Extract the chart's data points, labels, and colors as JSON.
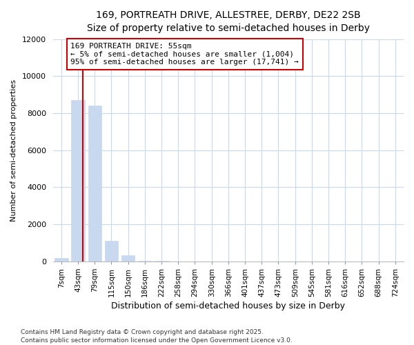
{
  "title1": "169, PORTREATH DRIVE, ALLESTREE, DERBY, DE22 2SB",
  "title2": "Size of property relative to semi-detached houses in Derby",
  "xlabel": "Distribution of semi-detached houses by size in Derby",
  "ylabel": "Number of semi-detached properties",
  "categories": [
    "7sqm",
    "43sqm",
    "79sqm",
    "115sqm",
    "150sqm",
    "186sqm",
    "222sqm",
    "258sqm",
    "294sqm",
    "330sqm",
    "366sqm",
    "401sqm",
    "437sqm",
    "473sqm",
    "509sqm",
    "545sqm",
    "581sqm",
    "616sqm",
    "652sqm",
    "688sqm",
    "724sqm"
  ],
  "values": [
    200,
    8700,
    8400,
    1100,
    350,
    50,
    20,
    5,
    2,
    1,
    0,
    0,
    0,
    0,
    0,
    0,
    0,
    0,
    0,
    0,
    0
  ],
  "bar_color": "#c8d8ee",
  "bar_edge_color": "#c8d8ee",
  "vline_x": 1.3,
  "vline_color": "#cc0000",
  "annotation_text": "169 PORTREATH DRIVE: 55sqm\n← 5% of semi-detached houses are smaller (1,004)\n95% of semi-detached houses are larger (17,741) →",
  "annotation_box_color": "#ffffff",
  "annotation_box_edge": "#cc0000",
  "ylim": [
    0,
    12000
  ],
  "yticks": [
    0,
    2000,
    4000,
    6000,
    8000,
    10000,
    12000
  ],
  "footer": "Contains HM Land Registry data © Crown copyright and database right 2025.\nContains public sector information licensed under the Open Government Licence v3.0.",
  "background_color": "#ffffff",
  "plot_background": "#ffffff",
  "grid_color": "#c8d8f0",
  "title1_fontsize": 11,
  "title2_fontsize": 10
}
